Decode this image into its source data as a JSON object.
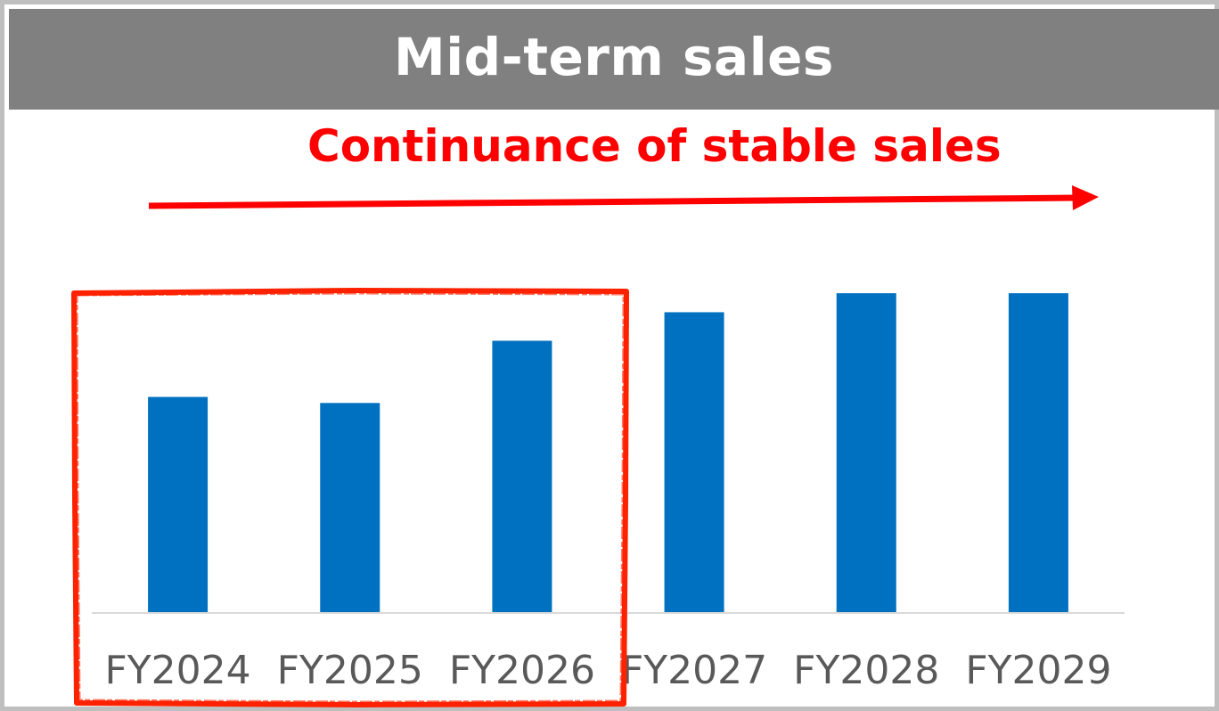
{
  "header": {
    "title": "Mid-term sales"
  },
  "annotation": {
    "text": "Continuance of stable sales",
    "color": "#ff0000",
    "arrow_direction": "right"
  },
  "highlight": {
    "color": "#ff2200",
    "covers_categories": [
      "FY2024",
      "FY2025",
      "FY2026"
    ]
  },
  "chart_data": {
    "type": "bar",
    "categories": [
      "FY2024",
      "FY2025",
      "FY2026",
      "FY2027",
      "FY2028",
      "FY2029"
    ],
    "values": [
      250,
      243,
      315,
      348,
      370,
      370
    ],
    "bar_color": "#0070c0",
    "ylim": [
      0,
      400
    ],
    "y_axis_shown": false,
    "grid": false,
    "legend": "none"
  }
}
